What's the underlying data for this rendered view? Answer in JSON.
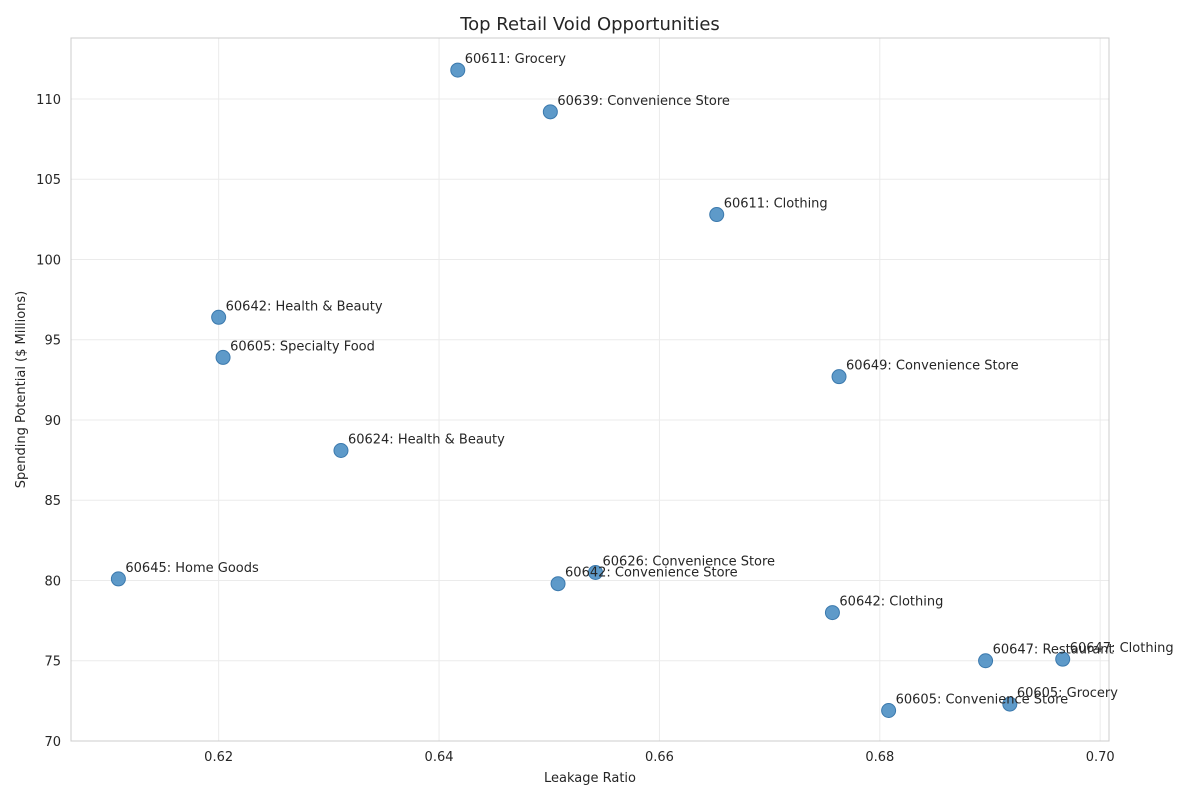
{
  "chart_data": {
    "type": "scatter",
    "title": "Top Retail Void Opportunities",
    "xlabel": "Leakage Ratio",
    "ylabel": "Spending Potential ($ Millions)",
    "xlim": [
      0.6066,
      0.7008
    ],
    "ylim": [
      70,
      113.8
    ],
    "xticks": [
      0.62,
      0.64,
      0.66,
      0.68,
      0.7
    ],
    "xtick_labels": [
      "0.62",
      "0.64",
      "0.66",
      "0.68",
      "0.70"
    ],
    "yticks": [
      70,
      75,
      80,
      85,
      90,
      95,
      100,
      105,
      110
    ],
    "ytick_labels": [
      "70",
      "75",
      "80",
      "85",
      "90",
      "95",
      "100",
      "105",
      "110"
    ],
    "grid": true,
    "marker_color": "#4c8fc3",
    "marker_edge_color": "#3b79ad",
    "points": [
      {
        "label": "60611: Grocery",
        "x": 0.6417,
        "y": 111.8
      },
      {
        "label": "60639: Convenience Store",
        "x": 0.6501,
        "y": 109.2
      },
      {
        "label": "60611: Clothing",
        "x": 0.6652,
        "y": 102.8
      },
      {
        "label": "60642: Health & Beauty",
        "x": 0.62,
        "y": 96.4
      },
      {
        "label": "60605: Specialty Food",
        "x": 0.6204,
        "y": 93.9
      },
      {
        "label": "60649: Convenience Store",
        "x": 0.6763,
        "y": 92.7
      },
      {
        "label": "60624: Health & Beauty",
        "x": 0.6311,
        "y": 88.1
      },
      {
        "label": "60645: Home Goods",
        "x": 0.6109,
        "y": 80.1
      },
      {
        "label": "60626: Convenience Store",
        "x": 0.6542,
        "y": 80.5
      },
      {
        "label": "60642: Convenience Store",
        "x": 0.6508,
        "y": 79.8
      },
      {
        "label": "60642: Clothing",
        "x": 0.6757,
        "y": 78.0
      },
      {
        "label": "60647: Restaurant",
        "x": 0.6896,
        "y": 75.0
      },
      {
        "label": "60647: Clothing",
        "x": 0.6966,
        "y": 75.1
      },
      {
        "label": "60605: Grocery",
        "x": 0.6918,
        "y": 72.3
      },
      {
        "label": "60605: Convenience Store",
        "x": 0.6808,
        "y": 71.9
      }
    ]
  }
}
